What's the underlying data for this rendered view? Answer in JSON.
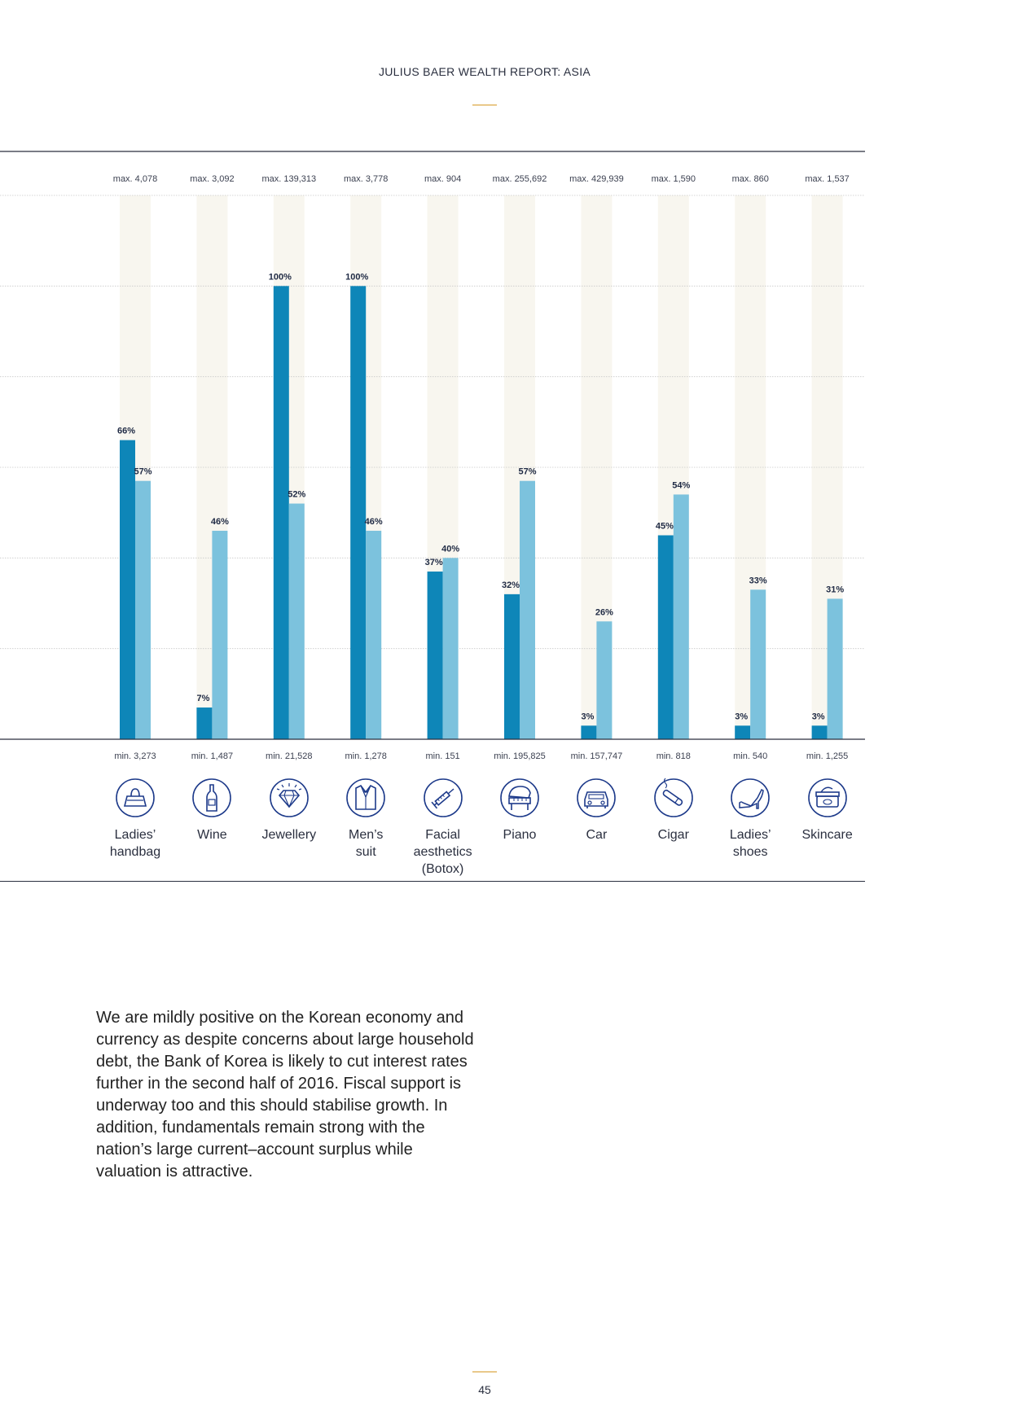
{
  "header": {
    "title": "JULIUS BAER WEALTH REPORT: ASIA"
  },
  "colors": {
    "dark_bar": "#0e86b8",
    "light_bar": "#7cc2dd",
    "track": "#f8f6ef",
    "gold": "#e9c98a",
    "icon": "#1d3a8a"
  },
  "chart_data": {
    "type": "bar",
    "categories": [
      "Ladies’\nhandbag",
      "Wine",
      "Jewellery",
      "Men’s\nsuit",
      "Facial\naesthetics\n(Botox)",
      "Piano",
      "Car",
      "Cigar",
      "Ladies’\nshoes",
      "Skincare"
    ],
    "max_labels": [
      "max. 4,078",
      "max. 3,092",
      "max. 139,313",
      "max. 3,778",
      "max. 904",
      "max. 255,692",
      "max. 429,939",
      "max. 1,590",
      "max. 860",
      "max. 1,537"
    ],
    "min_labels": [
      "min. 3,273",
      "min. 1,487",
      "min. 21,528",
      "min. 1,278",
      "min. 151",
      "min. 195,825",
      "min. 157,747",
      "min. 818",
      "min. 540",
      "min. 1,255"
    ],
    "series": [
      {
        "values": [
          66,
          7,
          100,
          100,
          37,
          32,
          3,
          45,
          3,
          3
        ]
      },
      {
        "values": [
          57,
          46,
          52,
          46,
          40,
          57,
          26,
          54,
          33,
          31
        ]
      }
    ],
    "value_labels": [
      [
        "66%",
        "7%",
        "100%",
        "100%",
        "37%",
        "32%",
        "3%",
        "45%",
        "3%",
        "3%"
      ],
      [
        "57%",
        "46%",
        "52%",
        "46%",
        "40%",
        "57%",
        "26%",
        "54%",
        "33%",
        "31%"
      ]
    ],
    "ylim": [
      0,
      120
    ],
    "grid": true
  },
  "icons": [
    "handbag-icon",
    "wine-bottle-icon",
    "diamond-icon",
    "suit-icon",
    "syringe-icon",
    "piano-icon",
    "car-icon",
    "cigar-icon",
    "high-heel-icon",
    "skincare-jar-icon"
  ],
  "body_text": "We are mildly positive on the Korean economy and currency as despite concerns about large household debt, the Bank of Korea is likely to cut interest rates further in the second half of 2016. Fiscal support is underway too and this should stabilise growth. In addition, fundamentals remain strong with the nation’s large current–account surplus while valuation is attractive.",
  "page_number": "45"
}
